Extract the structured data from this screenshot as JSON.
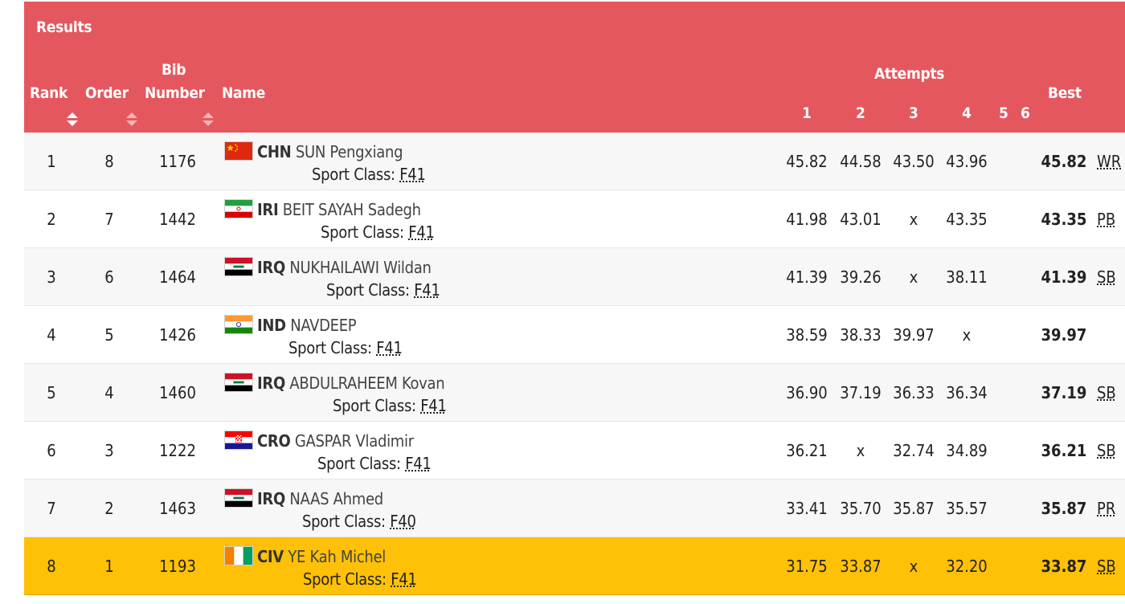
{
  "header": {
    "results_label": "Results",
    "rank_label": "Rank",
    "order_label": "Order",
    "bib_line1": "Bib",
    "bib_line2": "Number",
    "name_label": "Name",
    "attempts_label": "Attempts",
    "attempt_numbers": [
      "1",
      "2",
      "3",
      "4",
      "5",
      "6"
    ],
    "best_label": "Best"
  },
  "sport_class_label": "Sport Class:",
  "highlight_color": "#ffc107",
  "header_color": "#e5575e",
  "rows": [
    {
      "rank": "1",
      "order": "8",
      "bib": "1176",
      "country": "CHN",
      "name": "SUN Pengxiang",
      "sport_class": "F41",
      "a1": "45.82",
      "a2": "44.58",
      "a3": "43.50",
      "a4": "43.96",
      "best": "45.82",
      "record": "WR",
      "flag": "china-flag"
    },
    {
      "rank": "2",
      "order": "7",
      "bib": "1442",
      "country": "IRI",
      "name": "BEIT SAYAH Sadegh",
      "sport_class": "F41",
      "a1": "41.98",
      "a2": "43.01",
      "a3": "x",
      "a4": "43.35",
      "best": "43.35",
      "record": "PB",
      "flag": "iran-flag"
    },
    {
      "rank": "3",
      "order": "6",
      "bib": "1464",
      "country": "IRQ",
      "name": "NUKHAILAWI Wildan",
      "sport_class": "F41",
      "a1": "41.39",
      "a2": "39.26",
      "a3": "x",
      "a4": "38.11",
      "best": "41.39",
      "record": "SB",
      "flag": "iraq-flag"
    },
    {
      "rank": "4",
      "order": "5",
      "bib": "1426",
      "country": "IND",
      "name": "NAVDEEP",
      "sport_class": "F41",
      "a1": "38.59",
      "a2": "38.33",
      "a3": "39.97",
      "a4": "x",
      "best": "39.97",
      "record": "",
      "flag": "india-flag"
    },
    {
      "rank": "5",
      "order": "4",
      "bib": "1460",
      "country": "IRQ",
      "name": "ABDULRAHEEM Kovan",
      "sport_class": "F41",
      "a1": "36.90",
      "a2": "37.19",
      "a3": "36.33",
      "a4": "36.34",
      "best": "37.19",
      "record": "SB",
      "flag": "iraq-flag"
    },
    {
      "rank": "6",
      "order": "3",
      "bib": "1222",
      "country": "CRO",
      "name": "GASPAR Vladimir",
      "sport_class": "F41",
      "a1": "36.21",
      "a2": "x",
      "a3": "32.74",
      "a4": "34.89",
      "best": "36.21",
      "record": "SB",
      "flag": "croatia-flag"
    },
    {
      "rank": "7",
      "order": "2",
      "bib": "1463",
      "country": "IRQ",
      "name": "NAAS Ahmed",
      "sport_class": "F40",
      "a1": "33.41",
      "a2": "35.70",
      "a3": "35.87",
      "a4": "35.57",
      "best": "35.87",
      "record": "PR",
      "flag": "iraq-flag"
    },
    {
      "rank": "8",
      "order": "1",
      "bib": "1193",
      "country": "CIV",
      "name": "YE Kah Michel",
      "sport_class": "F41",
      "a1": "31.75",
      "a2": "33.87",
      "a3": "x",
      "a4": "32.20",
      "best": "33.87",
      "record": "SB",
      "flag": "cote-divoire-flag"
    }
  ]
}
